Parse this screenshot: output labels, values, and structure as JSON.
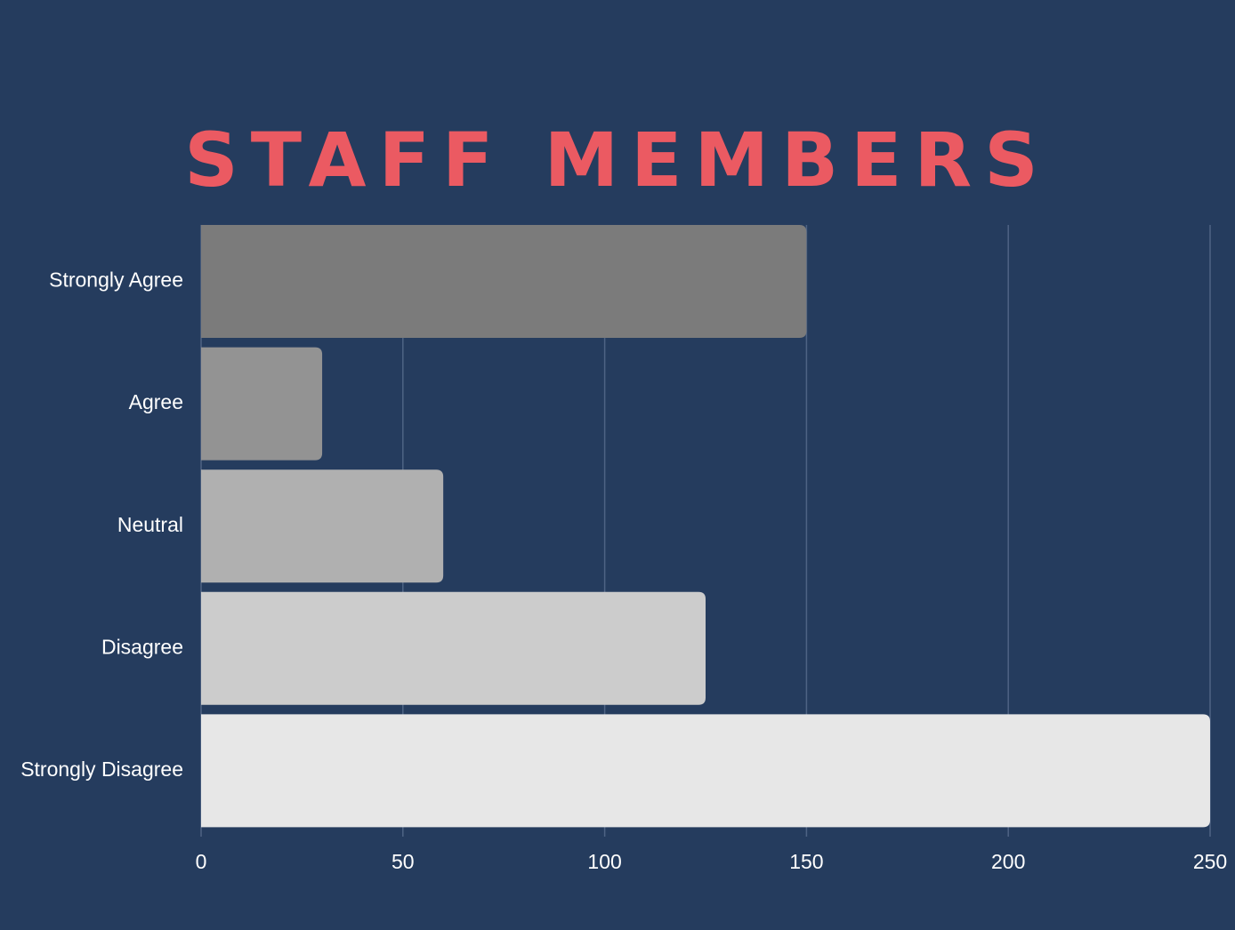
{
  "chart_data": {
    "type": "bar",
    "orientation": "horizontal",
    "title": "STAFF MEMBERS",
    "categories": [
      "Strongly Agree",
      "Agree",
      "Neutral",
      "Disagree",
      "Strongly Disagree"
    ],
    "values": [
      150,
      30,
      60,
      125,
      250
    ],
    "xlim": [
      0,
      250
    ],
    "xticks": [
      "0",
      "50",
      "100",
      "150",
      "200",
      "250"
    ],
    "grid": true,
    "colors": [
      "#7b7b7b",
      "#939393",
      "#b0b0b0",
      "#cccccc",
      "#e7e7e7"
    ],
    "background": "#253c5e",
    "title_color": "#eb5a62"
  }
}
